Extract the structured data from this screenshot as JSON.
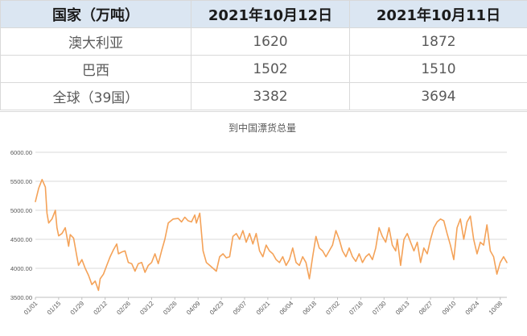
{
  "table": {
    "headers": [
      "国家（万吨）",
      "2021年10月12日",
      "2021年10月11日"
    ],
    "rows": [
      {
        "country": "澳大利亚",
        "v1012": "1620",
        "v1011": "1872"
      },
      {
        "country": "巴西",
        "v1012": "1502",
        "v1011": "1510"
      },
      {
        "country": "全球（39国）",
        "v1012": "3382",
        "v1011": "3694"
      }
    ]
  },
  "chart_data": {
    "type": "line",
    "title": "到中国漂货总量",
    "xlabel": "",
    "ylabel": "",
    "ylim": [
      3500,
      6000
    ],
    "yticks": [
      3500,
      4000,
      4500,
      5000,
      5500,
      6000
    ],
    "ytick_labels": [
      "3500.00",
      "4000.00",
      "4500.00",
      "5000.00",
      "5500.00",
      "6000.00"
    ],
    "grid": true,
    "legend": "none",
    "line_color": "#f4a258",
    "x_start": "2021-01-01",
    "x_end": "2021-10-12",
    "x_ticks": [
      "2021-01-01",
      "2021-01-15",
      "2021-01-29",
      "2021-02-12",
      "2021-02-26",
      "2021-03-12",
      "2021-03-26",
      "2021-04-09",
      "2021-04-23",
      "2021-05-07",
      "2021-05-21",
      "2021-06-04",
      "2021-06-18",
      "2021-07-02",
      "2021-07-16",
      "2021-07-30",
      "2021-08-13",
      "2021-08-27",
      "2021-09-10",
      "2021-09-24",
      "2021-10-08"
    ],
    "x_tick_labels": [
      "01/01",
      "01/15",
      "01/29",
      "02/12",
      "02/26",
      "03/12",
      "03/26",
      "04/09",
      "04/23",
      "05/07",
      "05/21",
      "06/04",
      "06/18",
      "07/02",
      "07/16",
      "07/30",
      "08/13",
      "08/27",
      "09/10",
      "09/24",
      "10/08"
    ],
    "points": [
      [
        "2021-01-01",
        5150
      ],
      [
        "2021-01-03",
        5380
      ],
      [
        "2021-01-05",
        5530
      ],
      [
        "2021-01-07",
        5400
      ],
      [
        "2021-01-08",
        4950
      ],
      [
        "2021-01-09",
        4780
      ],
      [
        "2021-01-11",
        4850
      ],
      [
        "2021-01-13",
        5000
      ],
      [
        "2021-01-14",
        4700
      ],
      [
        "2021-01-15",
        4560
      ],
      [
        "2021-01-17",
        4600
      ],
      [
        "2021-01-19",
        4700
      ],
      [
        "2021-01-21",
        4380
      ],
      [
        "2021-01-22",
        4580
      ],
      [
        "2021-01-24",
        4520
      ],
      [
        "2021-01-26",
        4200
      ],
      [
        "2021-01-27",
        4050
      ],
      [
        "2021-01-29",
        4150
      ],
      [
        "2021-01-31",
        4000
      ],
      [
        "2021-02-02",
        3880
      ],
      [
        "2021-02-04",
        3720
      ],
      [
        "2021-02-06",
        3780
      ],
      [
        "2021-02-08",
        3620
      ],
      [
        "2021-02-09",
        3820
      ],
      [
        "2021-02-11",
        3900
      ],
      [
        "2021-02-13",
        4050
      ],
      [
        "2021-02-15",
        4200
      ],
      [
        "2021-02-17",
        4320
      ],
      [
        "2021-02-19",
        4420
      ],
      [
        "2021-02-20",
        4250
      ],
      [
        "2021-02-22",
        4280
      ],
      [
        "2021-02-24",
        4300
      ],
      [
        "2021-02-26",
        4100
      ],
      [
        "2021-02-28",
        4080
      ],
      [
        "2021-03-02",
        3950
      ],
      [
        "2021-03-04",
        4080
      ],
      [
        "2021-03-06",
        4100
      ],
      [
        "2021-03-08",
        3930
      ],
      [
        "2021-03-10",
        4050
      ],
      [
        "2021-03-12",
        4100
      ],
      [
        "2021-03-14",
        4250
      ],
      [
        "2021-03-16",
        4080
      ],
      [
        "2021-03-18",
        4300
      ],
      [
        "2021-03-20",
        4500
      ],
      [
        "2021-03-22",
        4780
      ],
      [
        "2021-03-25",
        4850
      ],
      [
        "2021-03-28",
        4860
      ],
      [
        "2021-03-30",
        4800
      ],
      [
        "2021-04-01",
        4880
      ],
      [
        "2021-04-03",
        4820
      ],
      [
        "2021-04-05",
        4800
      ],
      [
        "2021-04-07",
        4920
      ],
      [
        "2021-04-08",
        4780
      ],
      [
        "2021-04-10",
        4950
      ],
      [
        "2021-04-12",
        4300
      ],
      [
        "2021-04-14",
        4100
      ],
      [
        "2021-04-16",
        4050
      ],
      [
        "2021-04-18",
        4000
      ],
      [
        "2021-04-20",
        3950
      ],
      [
        "2021-04-22",
        4200
      ],
      [
        "2021-04-24",
        4250
      ],
      [
        "2021-04-26",
        4180
      ],
      [
        "2021-04-28",
        4200
      ],
      [
        "2021-04-30",
        4550
      ],
      [
        "2021-05-02",
        4600
      ],
      [
        "2021-05-04",
        4500
      ],
      [
        "2021-05-06",
        4650
      ],
      [
        "2021-05-08",
        4450
      ],
      [
        "2021-05-10",
        4600
      ],
      [
        "2021-05-12",
        4420
      ],
      [
        "2021-05-14",
        4600
      ],
      [
        "2021-05-16",
        4300
      ],
      [
        "2021-05-18",
        4200
      ],
      [
        "2021-05-20",
        4400
      ],
      [
        "2021-05-22",
        4300
      ],
      [
        "2021-05-24",
        4250
      ],
      [
        "2021-05-26",
        4150
      ],
      [
        "2021-05-28",
        4100
      ],
      [
        "2021-05-30",
        4200
      ],
      [
        "2021-06-01",
        4050
      ],
      [
        "2021-06-03",
        4150
      ],
      [
        "2021-06-05",
        4350
      ],
      [
        "2021-06-07",
        4100
      ],
      [
        "2021-06-09",
        4050
      ],
      [
        "2021-06-11",
        4200
      ],
      [
        "2021-06-13",
        4100
      ],
      [
        "2021-06-15",
        3820
      ],
      [
        "2021-06-17",
        4200
      ],
      [
        "2021-06-19",
        4550
      ],
      [
        "2021-06-21",
        4350
      ],
      [
        "2021-06-23",
        4300
      ],
      [
        "2021-06-25",
        4200
      ],
      [
        "2021-06-27",
        4300
      ],
      [
        "2021-06-29",
        4400
      ],
      [
        "2021-07-01",
        4650
      ],
      [
        "2021-07-03",
        4500
      ],
      [
        "2021-07-05",
        4300
      ],
      [
        "2021-07-07",
        4200
      ],
      [
        "2021-07-09",
        4350
      ],
      [
        "2021-07-11",
        4200
      ],
      [
        "2021-07-13",
        4120
      ],
      [
        "2021-07-15",
        4250
      ],
      [
        "2021-07-17",
        4100
      ],
      [
        "2021-07-19",
        4200
      ],
      [
        "2021-07-21",
        4250
      ],
      [
        "2021-07-23",
        4150
      ],
      [
        "2021-07-25",
        4350
      ],
      [
        "2021-07-27",
        4700
      ],
      [
        "2021-07-29",
        4550
      ],
      [
        "2021-07-31",
        4450
      ],
      [
        "2021-08-02",
        4700
      ],
      [
        "2021-08-04",
        4400
      ],
      [
        "2021-08-06",
        4300
      ],
      [
        "2021-08-07",
        4500
      ],
      [
        "2021-08-09",
        4050
      ],
      [
        "2021-08-11",
        4500
      ],
      [
        "2021-08-13",
        4600
      ],
      [
        "2021-08-15",
        4450
      ],
      [
        "2021-08-17",
        4300
      ],
      [
        "2021-08-19",
        4450
      ],
      [
        "2021-08-21",
        4100
      ],
      [
        "2021-08-23",
        4350
      ],
      [
        "2021-08-25",
        4250
      ],
      [
        "2021-08-27",
        4500
      ],
      [
        "2021-08-29",
        4700
      ],
      [
        "2021-08-31",
        4800
      ],
      [
        "2021-09-02",
        4850
      ],
      [
        "2021-09-04",
        4820
      ],
      [
        "2021-09-06",
        4600
      ],
      [
        "2021-09-08",
        4400
      ],
      [
        "2021-09-10",
        4150
      ],
      [
        "2021-09-12",
        4700
      ],
      [
        "2021-09-14",
        4850
      ],
      [
        "2021-09-16",
        4500
      ],
      [
        "2021-09-18",
        4800
      ],
      [
        "2021-09-20",
        4900
      ],
      [
        "2021-09-22",
        4500
      ],
      [
        "2021-09-24",
        4250
      ],
      [
        "2021-09-26",
        4450
      ],
      [
        "2021-09-28",
        4400
      ],
      [
        "2021-09-30",
        4750
      ],
      [
        "2021-10-02",
        4300
      ],
      [
        "2021-10-04",
        4200
      ],
      [
        "2021-10-06",
        3900
      ],
      [
        "2021-10-08",
        4100
      ],
      [
        "2021-10-10",
        4200
      ],
      [
        "2021-10-12",
        4100
      ]
    ]
  }
}
